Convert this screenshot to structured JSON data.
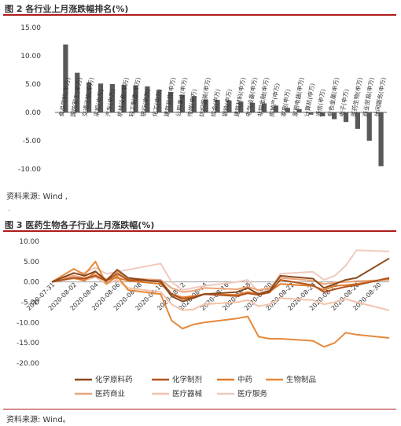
{
  "figure1": {
    "caption": "图 2  各行业上月涨跌幅排名(%)",
    "source": "资料来源: Wind ,"
  },
  "figure2": {
    "caption": "图 3  医药生物各子行业上月涨跌幅(%)",
    "source": "资料来源: Wind。"
  },
  "chart_data": [
    {
      "type": "bar",
      "ylim": [
        -10,
        15
      ],
      "yticks": [
        "15.00",
        "10.00",
        "5.00",
        "0.00",
        "-5.00",
        "-10.00"
      ],
      "categories": [
        "食品饮料(申万)",
        "国防军工(申万)",
        "交通运输(申万)",
        "采掘(申万)",
        "汽车(申万)",
        "机械设备(申万)",
        "轻工制造(申万)",
        "银行(申万)",
        "化工(申万)",
        "建筑装饰(申万)",
        "公用事业(申万)",
        "传媒(申万)",
        "纺织服装(申万)",
        "综合(申万)",
        "钢铁(申万)",
        "建筑材料(申万)",
        "电气设备(申万)",
        "非银金融(申万)",
        "房地产(申万)",
        "家电(申万)",
        "家用电器(申万)",
        "计算机(申万)",
        "通信(申万)",
        "有色金属(申万)",
        "电子(申万)",
        "医药生物(申万)",
        "商业贸易(申万)",
        "休闲服务(申万)"
      ],
      "values": [
        12.0,
        7.0,
        5.3,
        5.1,
        5.0,
        4.9,
        4.8,
        4.6,
        4.0,
        3.6,
        3.1,
        2.9,
        2.3,
        2.2,
        2.1,
        1.9,
        1.7,
        1.6,
        1.2,
        0.8,
        0.6,
        -0.4,
        -0.7,
        -1.2,
        -1.7,
        -2.9,
        -5.0,
        -9.5
      ]
    },
    {
      "type": "line",
      "ylim": [
        -20,
        10
      ],
      "yticks": [
        "10.00",
        "5.00",
        "0.00",
        "-5.00",
        "-10.00",
        "-15.00",
        "-20.00"
      ],
      "xticklabels": [
        "2020-07-31",
        "2020-08-02",
        "2020-08-04",
        "2020-08-06",
        "2020-08-08",
        "2020-08-10",
        "2020-08-12",
        "2020-08-14",
        "2020-08-16",
        "2020-08-18",
        "2020-08-20",
        "2020-08-22",
        "2020-08-24",
        "2020-08-26",
        "2020-08-28",
        "2020-08-30"
      ],
      "x": [
        0,
        2,
        3,
        4,
        5,
        6,
        7,
        10,
        11,
        12,
        13,
        14,
        17,
        18,
        19,
        20,
        21,
        24,
        25,
        26,
        27,
        28,
        31
      ],
      "series": [
        {
          "name": "化学原料药",
          "color": "#8b4a1c",
          "values": [
            0,
            2.2,
            1.5,
            2.6,
            0.3,
            3.0,
            1.0,
            0.0,
            -3.5,
            -4.8,
            -4.0,
            -3.0,
            -2.5,
            -1.5,
            -3.0,
            -2.2,
            1.5,
            0.8,
            -1.5,
            -0.5,
            0.5,
            1.0,
            5.8
          ]
        },
        {
          "name": "化学制剂",
          "color": "#b0531f",
          "values": [
            0,
            1.0,
            0.8,
            1.5,
            0.2,
            2.0,
            0.5,
            0.2,
            -3.0,
            -4.2,
            -3.8,
            -3.0,
            -3.5,
            -2.8,
            -3.2,
            -2.6,
            0.5,
            -0.8,
            -2.5,
            -1.8,
            -1.2,
            -0.8,
            1.0
          ]
        },
        {
          "name": "中药",
          "color": "#e07b2a",
          "values": [
            0,
            1.0,
            0.3,
            2.5,
            0.5,
            1.0,
            0.3,
            -0.5,
            -3.0,
            -3.8,
            -3.5,
            -3.0,
            -3.2,
            -2.5,
            -3.0,
            -2.4,
            -0.5,
            -1.0,
            -2.0,
            -1.0,
            -0.8,
            -0.5,
            0.8
          ]
        },
        {
          "name": "生物制品",
          "color": "#e6893b",
          "values": [
            0,
            3.2,
            1.8,
            5.0,
            -0.5,
            1.5,
            -2.0,
            -3.0,
            -9.5,
            -11.5,
            -10.5,
            -10.0,
            -9.0,
            -8.5,
            -13.5,
            -14.0,
            -14.0,
            -14.5,
            -16.0,
            -15.0,
            -12.5,
            -13.0,
            -13.8
          ]
        },
        {
          "name": "医药商业",
          "color": "#eaa37a",
          "values": [
            0,
            1.5,
            1.0,
            1.8,
            0.6,
            2.5,
            0.8,
            0.5,
            -1.5,
            -2.5,
            -2.2,
            -1.5,
            -1.8,
            -1.2,
            -2.0,
            -1.5,
            1.0,
            0.3,
            -0.5,
            -0.2,
            0.0,
            0.2,
            0.5
          ]
        },
        {
          "name": "医疗器械",
          "color": "#f2c3aa",
          "values": [
            0,
            0.8,
            0.4,
            1.2,
            -0.5,
            0.5,
            -1.5,
            -2.5,
            -5.5,
            -7.0,
            -6.8,
            -5.5,
            -5.0,
            -4.5,
            -6.0,
            -5.5,
            -4.0,
            -4.5,
            -5.5,
            -5.0,
            -4.2,
            -5.0,
            -7.0
          ]
        },
        {
          "name": "医疗服务",
          "color": "#f0c9bf",
          "values": [
            0,
            2.0,
            2.3,
            3.5,
            2.0,
            2.5,
            3.0,
            4.5,
            0.0,
            -2.0,
            -1.5,
            -1.0,
            0.0,
            0.5,
            -2.5,
            -2.0,
            2.0,
            2.5,
            0.5,
            1.5,
            4.0,
            7.8,
            7.5
          ]
        }
      ]
    }
  ]
}
